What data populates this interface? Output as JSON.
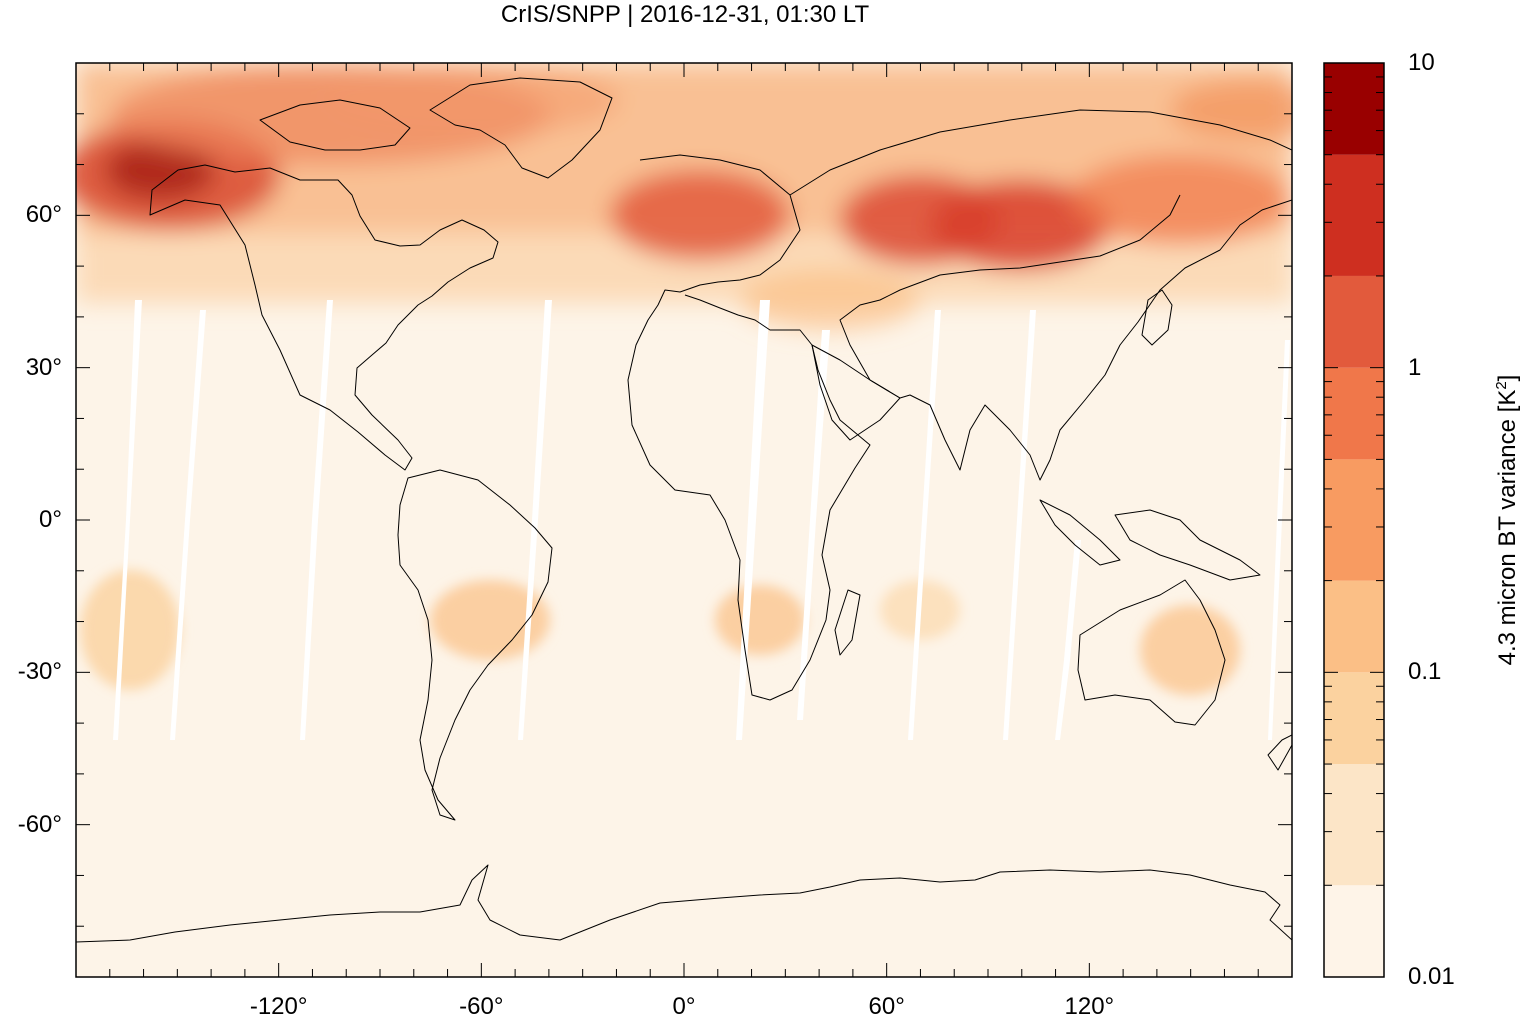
{
  "title": "CrIS/SNPP | 2016-12-31, 01:30 LT",
  "map": {
    "projection": "equirectangular",
    "lon_range": [
      -180,
      180
    ],
    "lat_range": [
      -90,
      90
    ],
    "lat_ticks": [
      {
        "value": 60,
        "label": "60°"
      },
      {
        "value": 30,
        "label": "30°"
      },
      {
        "value": 0,
        "label": "0°"
      },
      {
        "value": -30,
        "label": "-30°"
      },
      {
        "value": -60,
        "label": "-60°"
      }
    ],
    "lon_ticks": [
      {
        "value": -120,
        "label": "-120°"
      },
      {
        "value": -60,
        "label": "-60°"
      },
      {
        "value": 0,
        "label": "0°"
      },
      {
        "value": 60,
        "label": "60°"
      },
      {
        "value": 120,
        "label": "120°"
      }
    ],
    "background_color": "#fdf4e8",
    "coastline_color": "#000000"
  },
  "colorbar": {
    "label": "4.3 micron BT variance [K",
    "label_sup": "2",
    "label_end": "]",
    "scale": "log",
    "range": [
      0.01,
      10
    ],
    "ticks": [
      {
        "value": 10,
        "label": "10"
      },
      {
        "value": 1,
        "label": "1"
      },
      {
        "value": 0.1,
        "label": "0.1"
      },
      {
        "value": 0.01,
        "label": "0.01"
      }
    ],
    "levels": [
      {
        "min": 0.01,
        "max": 0.02,
        "color": "#fef4e8"
      },
      {
        "min": 0.02,
        "max": 0.05,
        "color": "#fce5c7"
      },
      {
        "min": 0.05,
        "max": 0.1,
        "color": "#fbd29f"
      },
      {
        "min": 0.1,
        "max": 0.2,
        "color": "#fbbf86"
      },
      {
        "min": 0.2,
        "max": 0.5,
        "color": "#f89b61"
      },
      {
        "min": 0.5,
        "max": 1,
        "color": "#f0774a"
      },
      {
        "min": 1,
        "max": 2,
        "color": "#e25a3c"
      },
      {
        "min": 2,
        "max": 5,
        "color": "#ce2f20"
      },
      {
        "min": 5,
        "max": 10,
        "color": "#990000"
      }
    ]
  }
}
